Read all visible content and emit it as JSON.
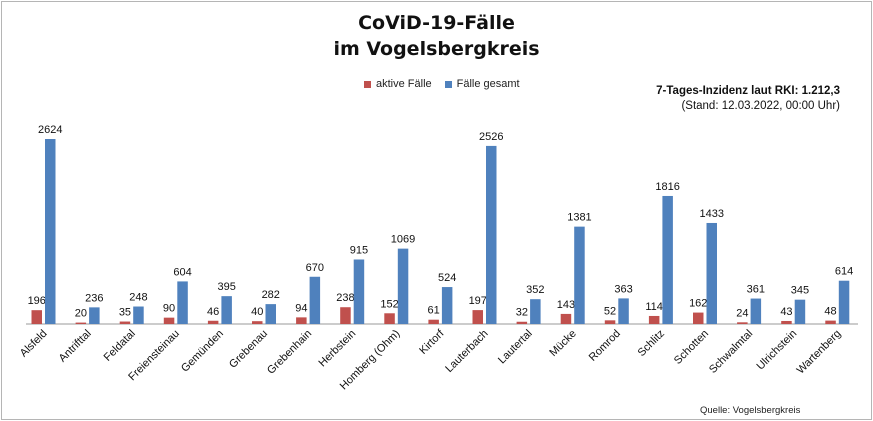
{
  "chart_data": {
    "type": "bar",
    "title": "CoViD-19-Fälle",
    "subtitle": "im Vogelsbergkreis",
    "categories": [
      "Alsfeld",
      "Antrifttal",
      "Feldatal",
      "Freiensteinau",
      "Gemünden",
      "Grebenau",
      "Grebenhain",
      "Herbstein",
      "Homberg (Ohm)",
      "Kirtorf",
      "Lauterbach",
      "Lautertal",
      "Mücke",
      "Romrod",
      "Schlitz",
      "Schotten",
      "Schwalmtal",
      "Ulrichstein",
      "Wartenberg"
    ],
    "series": [
      {
        "name": "aktive Fälle",
        "color": "#c0504d",
        "values": [
          196,
          20,
          35,
          90,
          46,
          40,
          94,
          238,
          152,
          61,
          197,
          32,
          143,
          52,
          114,
          162,
          24,
          43,
          48
        ]
      },
      {
        "name": "Fälle gesamt",
        "color": "#4f81bd",
        "values": [
          2624,
          236,
          248,
          604,
          395,
          282,
          670,
          915,
          1069,
          524,
          2526,
          352,
          1381,
          363,
          1816,
          1433,
          361,
          345,
          614
        ]
      }
    ],
    "ylim": [
      0,
      2700
    ],
    "grid": false,
    "legend_position": "top",
    "annotation": {
      "line1": "7-Tages-Inzidenz laut RKI: 1.212,3",
      "line2": "(Stand: 12.03.2022, 00:00 Uhr)"
    },
    "source": "Quelle: Vogelsbergkreis"
  }
}
